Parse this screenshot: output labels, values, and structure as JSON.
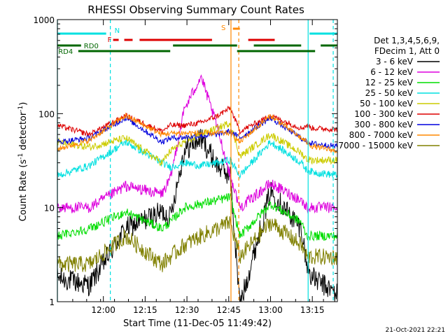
{
  "chart_data": {
    "type": "line",
    "title": "RHESSI Observing Summary Count Rates",
    "xlabel": "Start Time (11-Dec-05 11:49:42)",
    "ylabel_main": "Count Rate (s",
    "ylabel_sup1": "-1",
    "ylabel_mid": " detector",
    "ylabel_sup2": "-1",
    "ylabel_end": ")",
    "y_scale": "log",
    "ylim": [
      1,
      1000
    ],
    "xlim_minutes": [
      -5.5,
      95
    ],
    "x_ticks": [
      {
        "t": 11,
        "label": "12:00"
      },
      {
        "t": 26,
        "label": "12:15"
      },
      {
        "t": 41,
        "label": "12:30"
      },
      {
        "t": 56,
        "label": "12:45"
      },
      {
        "t": 71,
        "label": "13:00"
      },
      {
        "t": 86,
        "label": "13:15"
      }
    ],
    "y_ticks": [
      {
        "v": 1,
        "label": "1"
      },
      {
        "v": 10,
        "label": "10"
      },
      {
        "v": 100,
        "label": "100"
      },
      {
        "v": 1000,
        "label": "1000"
      }
    ],
    "legend": {
      "placement": "right",
      "header1": "Det 1,3,4,5,6,9,",
      "header2": "FDecim 1, Att 0"
    },
    "series": [
      {
        "name": "3 - 6 keV",
        "color": "#000000"
      },
      {
        "name": "6 - 12 keV",
        "color": "#dd00dd"
      },
      {
        "name": "12 - 25 keV",
        "color": "#00dd00"
      },
      {
        "name": "25 - 50 keV",
        "color": "#00e0e0"
      },
      {
        "name": "50 - 100 keV",
        "color": "#cccc00"
      },
      {
        "name": "100 - 300 keV",
        "color": "#dd0000"
      },
      {
        "name": "300 - 800 keV",
        "color": "#0000dd"
      },
      {
        "name": "800 - 7000 keV",
        "color": "#ff8800"
      },
      {
        "name": "7000 - 15000 keV",
        "color": "#808000"
      }
    ],
    "flag_bars": [
      {
        "label": "N",
        "color": "#00e0e0",
        "segments": [
          [
            -5.5,
            12
          ],
          [
            85,
            95
          ]
        ]
      },
      {
        "label": "F",
        "color": "#dd0000",
        "segments": [
          [
            14.5,
            16.5
          ],
          [
            18.5,
            21.5
          ],
          [
            24,
            50
          ],
          [
            63,
            72.5
          ]
        ]
      },
      {
        "label": "S",
        "color": "#ff8800",
        "segments": [
          [
            57.5,
            60
          ]
        ]
      },
      {
        "label": "RD0",
        "color": "#006600",
        "segments": [
          [
            -5.5,
            3
          ],
          [
            36,
            59
          ],
          [
            65,
            82
          ],
          [
            89,
            95
          ]
        ]
      },
      {
        "label": "RD4",
        "color": "#006600",
        "segments": [
          [
            2,
            35
          ],
          [
            59,
            87
          ]
        ]
      }
    ],
    "event_lines": [
      {
        "t": -5.5,
        "color": "#00e0e0",
        "style": "solid"
      },
      {
        "t": 13.5,
        "color": "#00e0e0",
        "style": "dashed"
      },
      {
        "t": 84.5,
        "color": "#00e0e0",
        "style": "solid"
      },
      {
        "t": 93.5,
        "color": "#00e0e0",
        "style": "dashed"
      },
      {
        "t": 56.8,
        "color": "#ff8800",
        "style": "solid"
      },
      {
        "t": 59.6,
        "color": "#ff8800",
        "style": "dashed"
      }
    ],
    "profiles": {
      "knots_t": [
        -5.5,
        6,
        19,
        32,
        35,
        40,
        46,
        52,
        56.5,
        60,
        71,
        82,
        84,
        86,
        95
      ],
      "values": [
        [
          1.8,
          1.5,
          6,
          9,
          8,
          40,
          55,
          28,
          22,
          0.9,
          15,
          6,
          2.5,
          1.8,
          1.2
        ],
        [
          10,
          10,
          17,
          14,
          20,
          110,
          250,
          70,
          22,
          10,
          18,
          12,
          10,
          10,
          10
        ],
        [
          5,
          6,
          9,
          6,
          7,
          10,
          11,
          12,
          13,
          5,
          11,
          7,
          5,
          5,
          5
        ],
        [
          22,
          28,
          50,
          30,
          27,
          30,
          28,
          30,
          32,
          22,
          50,
          30,
          25,
          24,
          22
        ],
        [
          50,
          44,
          55,
          30,
          40,
          50,
          60,
          70,
          80,
          35,
          60,
          38,
          33,
          32,
          32
        ],
        [
          75,
          60,
          95,
          65,
          75,
          75,
          80,
          95,
          115,
          65,
          95,
          70,
          75,
          70,
          68
        ],
        [
          50,
          55,
          90,
          50,
          55,
          56,
          58,
          60,
          65,
          55,
          90,
          55,
          50,
          48,
          45
        ],
        [
          42,
          52,
          95,
          60,
          62,
          62,
          62,
          62,
          62,
          50,
          95,
          55,
          50,
          45,
          40
        ],
        [
          2.5,
          2.5,
          5,
          2.5,
          3,
          4,
          5,
          6,
          7,
          3,
          7,
          4,
          3,
          3,
          3
        ]
      ]
    },
    "timestamp": "21-Oct-2021 22:21"
  }
}
